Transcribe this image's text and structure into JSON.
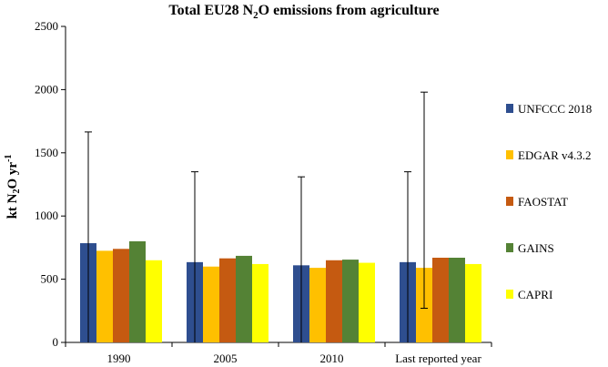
{
  "chart_data": {
    "type": "bar",
    "title_parts": [
      "Total EU28 N",
      "2",
      "O  emissions  from agriculture"
    ],
    "ylabel_parts": [
      "kt  N",
      "2",
      "O yr",
      "-1"
    ],
    "xlabel": "",
    "categories": [
      "1990",
      "2005",
      "2010",
      "Last reported year"
    ],
    "ylim": [
      0,
      2500
    ],
    "yticks": [
      0,
      500,
      1000,
      1500,
      2000,
      2500
    ],
    "grid": false,
    "legend_position": "right",
    "series": [
      {
        "name": "UNFCCC 2018",
        "color": "#2e4e8f",
        "values": [
          785,
          635,
          610,
          635
        ],
        "error_bars": [
          [
            0,
            1665
          ],
          [
            0,
            1350
          ],
          [
            0,
            1310
          ],
          [
            0,
            1350
          ]
        ]
      },
      {
        "name": "EDGAR v4.3.2",
        "color": "#ffc000",
        "values": [
          725,
          600,
          590,
          590
        ],
        "error_bars": [
          null,
          null,
          null,
          [
            270,
            1980
          ]
        ]
      },
      {
        "name": "FAOSTAT",
        "color": "#c55a11",
        "values": [
          740,
          665,
          650,
          670
        ]
      },
      {
        "name": "GAINS",
        "color": "#548235",
        "values": [
          800,
          685,
          655,
          670
        ]
      },
      {
        "name": "CAPRI",
        "color": "#ffff00",
        "values": [
          650,
          620,
          630,
          620
        ]
      }
    ]
  }
}
